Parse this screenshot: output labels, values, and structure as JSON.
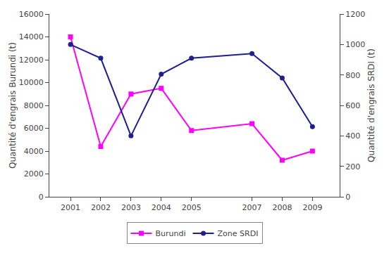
{
  "chart_data": {
    "type": "line",
    "x": [
      2001,
      2002,
      2003,
      2004,
      2005,
      2007,
      2008,
      2009
    ],
    "series": [
      {
        "name": "Burundi",
        "color": "#FF00FF",
        "marker": "square",
        "values": [
          14000,
          4400,
          9000,
          9500,
          5800,
          6400,
          3200,
          4000
        ]
      },
      {
        "name": "Zone SRDI",
        "color": "#1F1F8F",
        "marker": "circle",
        "axis": "y2",
        "values": [
          1000,
          910,
          400,
          805,
          910,
          940,
          780,
          460
        ]
      }
    ],
    "ylabel": "Quantité d'engrais Burundi (t)",
    "y2label": "Quantité d'engrais SRDI (t)",
    "xlim": [
      2000.3,
      2009.9
    ],
    "xticks": [
      2001,
      2002,
      2003,
      2004,
      2005,
      2007,
      2008,
      2009
    ],
    "ylim": [
      0,
      16000
    ],
    "yticks": [
      0,
      2000,
      4000,
      6000,
      8000,
      10000,
      12000,
      14000,
      16000
    ],
    "y2lim": [
      0,
      1200
    ],
    "y2ticks": [
      0,
      200,
      400,
      600,
      800,
      1000,
      1200
    ],
    "grid": false,
    "legend": "bottom"
  }
}
